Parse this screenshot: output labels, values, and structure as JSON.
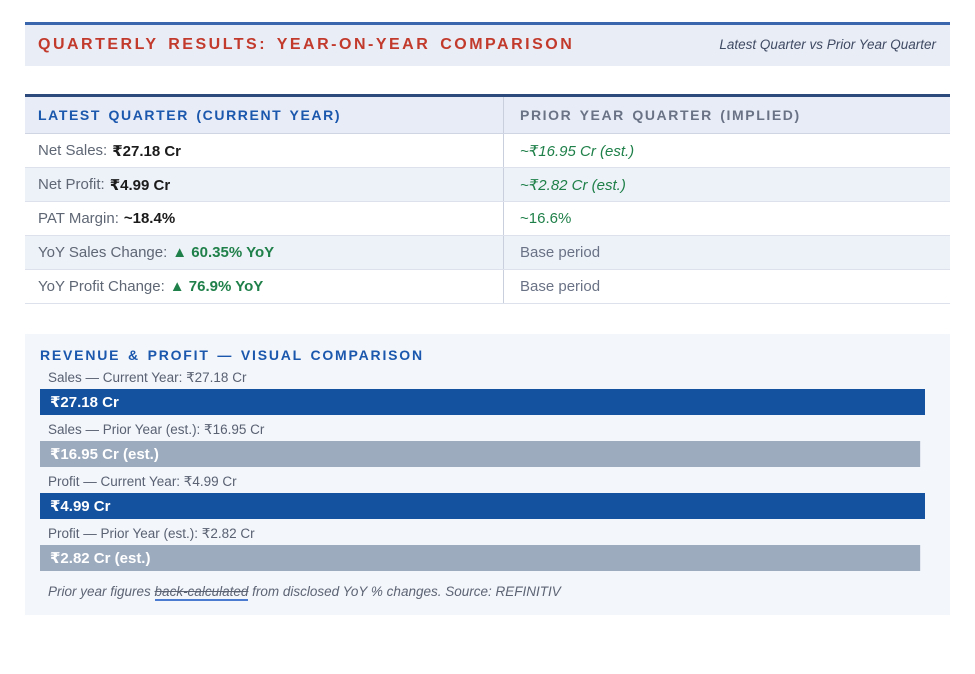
{
  "header": {
    "title": "QUARTERLY RESULTS: YEAR-ON-YEAR COMPARISON",
    "subtitle": "Latest Quarter vs Prior Year Quarter"
  },
  "table": {
    "col_left": "LATEST QUARTER (CURRENT YEAR)",
    "col_right": "PRIOR YEAR QUARTER (IMPLIED)",
    "rows": [
      {
        "label": "Net Sales:",
        "value": "₹27.18 Cr",
        "prior": "~₹16.95 Cr (est.)"
      },
      {
        "label": "Net Profit:",
        "value": "₹4.99 Cr",
        "prior": "~₹2.82 Cr (est.)"
      },
      {
        "label": "PAT Margin:",
        "value": "~18.4%",
        "prior": "~16.6%"
      },
      {
        "label": "YoY Sales Change:",
        "value": "▲ 60.35% YoY",
        "prior": "Base period"
      },
      {
        "label": "YoY Profit Change:",
        "value": "▲ 76.9% YoY",
        "prior": "Base period"
      }
    ]
  },
  "visual": {
    "heading": "REVENUE & PROFIT — VISUAL COMPARISON",
    "bars": [
      {
        "label": "Sales — Current Year: ₹27.18 Cr",
        "bar_text": "₹27.18 Cr"
      },
      {
        "label": "Sales — Prior Year (est.): ₹16.95 Cr",
        "bar_text": "₹16.95 Cr (est.)"
      },
      {
        "label": "Profit — Current Year: ₹4.99 Cr",
        "bar_text": "₹4.99 Cr"
      },
      {
        "label": "Profit — Prior Year (est.): ₹2.82 Cr",
        "bar_text": "₹2.82 Cr (est.)"
      }
    ],
    "footnote": {
      "prefix": "Prior year figures ",
      "link_text": "back-calculated",
      "suffix": " from disclosed YoY % changes. Source: REFINITIV"
    }
  },
  "colors": {
    "accent_blue": "#14519E",
    "bar_gray": "#9DABBF",
    "title_red": "#C23A2C",
    "heading_blue": "#1A57AD",
    "muted_header_gray": "#6A7386",
    "positive_green": "#1F8049",
    "header_panel_bg": "#E9EDF6",
    "alt_row_bg": "#EDF1F8",
    "section_bg": "#F3F6FB",
    "link_underline_blue": "#4A7BD0"
  },
  "chart_data": {
    "type": "bar",
    "orientation": "horizontal",
    "title": "REVENUE & PROFIT — VISUAL COMPARISON",
    "categories": [
      "Sales — Current Year",
      "Sales — Prior Year (est.)",
      "Profit — Current Year",
      "Profit — Prior Year (est.)"
    ],
    "values": [
      27.18,
      16.95,
      4.99,
      2.82
    ],
    "unit": "₹ Cr",
    "bar_labels": [
      "₹27.18 Cr",
      "₹16.95 Cr (est.)",
      "₹4.99 Cr",
      "₹2.82 Cr (est.)"
    ],
    "bar_colors": [
      "#14519E",
      "#9DABBF",
      "#14519E",
      "#9DABBF"
    ],
    "legend_position": "none",
    "grid": false,
    "layout_note": "bars rendered at equal full width in source image, not proportional to values",
    "related_table_values": {
      "net_sales_current_cr": 27.18,
      "net_sales_prior_cr": 16.95,
      "net_profit_current_cr": 4.99,
      "net_profit_prior_cr": 2.82,
      "pat_margin_current_pct": 18.4,
      "pat_margin_prior_pct": 16.6,
      "yoy_sales_change_pct": 60.35,
      "yoy_profit_change_pct": 76.9
    }
  }
}
